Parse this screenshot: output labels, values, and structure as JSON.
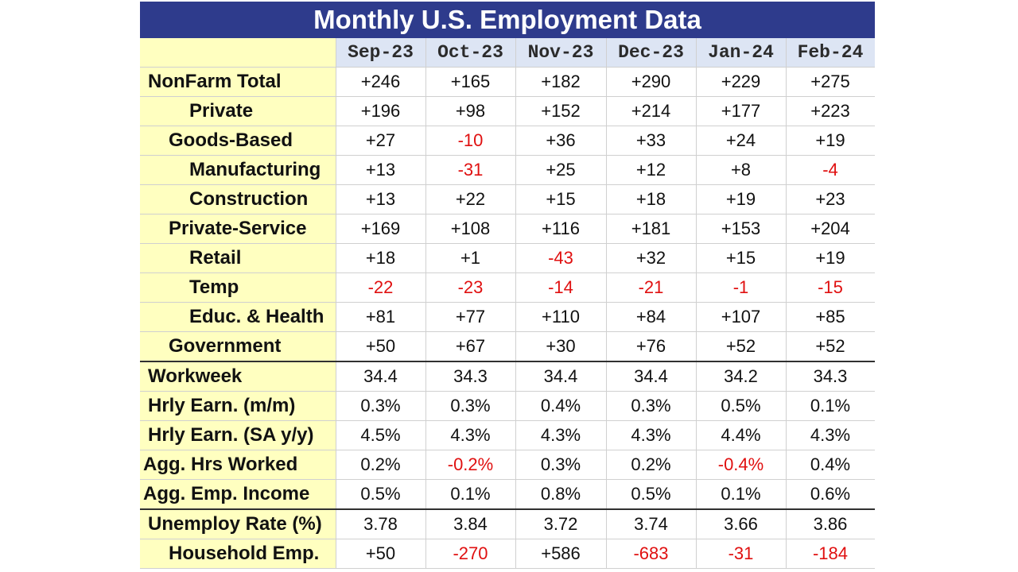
{
  "title": "Monthly U.S. Employment Data",
  "months": [
    "Sep-23",
    "Oct-23",
    "Nov-23",
    "Dec-23",
    "Jan-24",
    "Feb-24"
  ],
  "rows": [
    {
      "label": "NonFarm Total",
      "indent": 1,
      "values": [
        "+246",
        "+165",
        "+182",
        "+290",
        "+229",
        "+275"
      ]
    },
    {
      "label": "Private",
      "indent": 3,
      "values": [
        "+196",
        "+98",
        "+152",
        "+214",
        "+177",
        "+223"
      ]
    },
    {
      "label": "Goods-Based",
      "indent": 2,
      "values": [
        "+27",
        "-10",
        "+36",
        "+33",
        "+24",
        "+19"
      ]
    },
    {
      "label": "Manufacturing",
      "indent": 3,
      "values": [
        "+13",
        "-31",
        "+25",
        "+12",
        "+8",
        "-4"
      ]
    },
    {
      "label": "Construction",
      "indent": 3,
      "values": [
        "+13",
        "+22",
        "+15",
        "+18",
        "+19",
        "+23"
      ]
    },
    {
      "label": "Private-Service",
      "indent": 2,
      "values": [
        "+169",
        "+108",
        "+116",
        "+181",
        "+153",
        "+204"
      ]
    },
    {
      "label": "Retail",
      "indent": 3,
      "values": [
        "+18",
        "+1",
        "-43",
        "+32",
        "+15",
        "+19"
      ]
    },
    {
      "label": "Temp",
      "indent": 3,
      "values": [
        "-22",
        "-23",
        "-14",
        "-21",
        "-1",
        "-15"
      ]
    },
    {
      "label": "Educ. & Health",
      "indent": 3,
      "values": [
        "+81",
        "+77",
        "+110",
        "+84",
        "+107",
        "+85"
      ]
    },
    {
      "label": "Government",
      "indent": 2,
      "section_end": true,
      "values": [
        "+50",
        "+67",
        "+30",
        "+76",
        "+52",
        "+52"
      ]
    },
    {
      "label": "Workweek",
      "indent": 1,
      "values": [
        "34.4",
        "34.3",
        "34.4",
        "34.4",
        "34.2",
        "34.3"
      ]
    },
    {
      "label": "Hrly Earn. (m/m)",
      "indent": 1,
      "values": [
        "0.3%",
        "0.3%",
        "0.4%",
        "0.3%",
        "0.5%",
        "0.1%"
      ]
    },
    {
      "label": "Hrly Earn. (SA y/y)",
      "indent": 1,
      "values": [
        "4.5%",
        "4.3%",
        "4.3%",
        "4.3%",
        "4.4%",
        "4.3%"
      ]
    },
    {
      "label": "Agg. Hrs Worked",
      "indent": 0,
      "values": [
        "0.2%",
        "-0.2%",
        "0.3%",
        "0.2%",
        "-0.4%",
        "0.4%"
      ]
    },
    {
      "label": "Agg. Emp. Income",
      "indent": 0,
      "section_end": true,
      "values": [
        "0.5%",
        "0.1%",
        "0.8%",
        "0.5%",
        "0.1%",
        "0.6%"
      ]
    },
    {
      "label": "Unemploy Rate (%)",
      "indent": 1,
      "values": [
        "3.78",
        "3.84",
        "3.72",
        "3.74",
        "3.66",
        "3.86"
      ]
    },
    {
      "label": "Household Emp.",
      "indent": 2,
      "values": [
        "+50",
        "-270",
        "+586",
        "-683",
        "-31",
        "-184"
      ]
    }
  ],
  "colors": {
    "title_bg": "#2e3b8c",
    "label_bg": "#ffffc0",
    "header_bg": "#dde5f4",
    "negative": "#e01010"
  }
}
